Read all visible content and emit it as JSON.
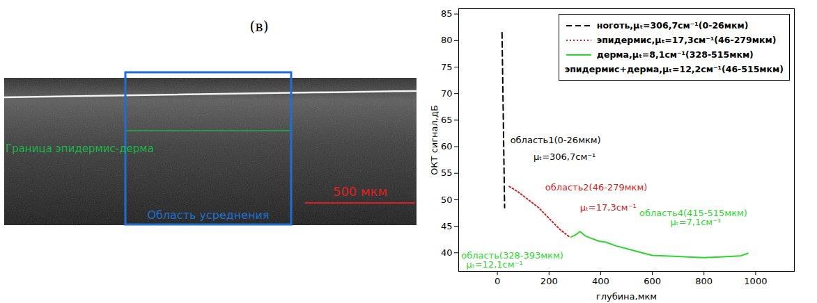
{
  "panel_label": "(в)",
  "image": {
    "boundary_label": "Граница эпидермис-дерма",
    "averaging_region_label": "Область усреднения",
    "scale_bar_label": "500 мкм"
  },
  "chart_data": {
    "type": "line",
    "xlabel": "глубина,мкм",
    "ylabel": "ОКТ сигнал,дБ",
    "xlim": [
      -150,
      1150
    ],
    "xticks": [
      0,
      200,
      400,
      600,
      800,
      1000
    ],
    "ylim": [
      36.5,
      86
    ],
    "yticks": [
      40,
      45,
      50,
      55,
      60,
      65,
      70,
      75,
      80,
      85
    ],
    "grid": false,
    "legend": "top-right",
    "series": [
      {
        "name": "ноготь,μₜ=306,7см⁻¹(0-26мкм)",
        "color": "#000000",
        "line_style": "dashed",
        "x": [
          18,
          28
        ],
        "values": [
          81.5,
          48.5
        ]
      },
      {
        "name": "эпидермис,μₜ=17,3см⁻¹(46-279мкм)",
        "color": "#d42020",
        "line_style": "dotted",
        "x": [
          46,
          80,
          120,
          160,
          200,
          240,
          279
        ],
        "values": [
          52.5,
          51.5,
          50,
          48.5,
          46.5,
          44.5,
          43
        ]
      },
      {
        "name": "дерма,μₜ=8,1см⁻¹(328-515мкм)",
        "color": "#2bd62b",
        "line_style": "solid",
        "x": [
          285,
          300,
          320,
          340,
          360,
          393,
          420,
          460,
          515,
          560,
          600,
          650,
          700,
          750,
          800,
          850,
          900,
          940,
          970
        ],
        "values": [
          43,
          43.3,
          44,
          43.2,
          42.8,
          42.2,
          42,
          41.3,
          40.6,
          40,
          39.5,
          39.4,
          39.3,
          39.2,
          39.1,
          39.2,
          39.3,
          39.4,
          39.9
        ]
      },
      {
        "name": "эпидермис+дерма,μₜ=12,2см⁻¹(46-515мкм)",
        "line_style": "none",
        "x": [],
        "values": []
      }
    ],
    "annotations": [
      {
        "text": "область1(0-26мкм)",
        "x": 50,
        "y": 61.2,
        "color": "#000000"
      },
      {
        "text": "μₜ=306,7см⁻¹",
        "x": 140,
        "y": 58,
        "color": "#000000"
      },
      {
        "text": "область2(46-279мкм)",
        "x": 185,
        "y": 52.3,
        "color": "#d42020"
      },
      {
        "text": "μₜ=17,3см⁻¹",
        "x": 320,
        "y": 48.5,
        "color": "#d42020"
      },
      {
        "text": "область(328-393мкм)",
        "x": -140,
        "y": 39.5,
        "color": "#2bd62b"
      },
      {
        "text": "μₜ=12,1см⁻¹",
        "x": -120,
        "y": 37.8,
        "color": "#2bd62b"
      },
      {
        "text": "область4(415-515мкм)",
        "x": 550,
        "y": 47.5,
        "color": "#2bd62b"
      },
      {
        "text": "μₜ=7,1см⁻¹",
        "x": 670,
        "y": 45.7,
        "color": "#2bd62b"
      }
    ]
  }
}
